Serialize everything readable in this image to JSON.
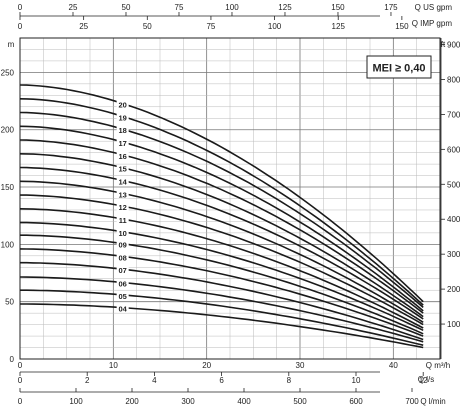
{
  "chart_data": {
    "type": "line",
    "title": "",
    "badge": "MEI ≥ 0,40",
    "flow_max_m3h": 45,
    "head_range_m": [
      0,
      280
    ],
    "axes": {
      "top_us": {
        "label": "Q US gpm",
        "ticks": [
          0,
          25,
          50,
          75,
          100,
          125,
          150,
          175
        ]
      },
      "top_imp": {
        "label": "Q IMP gpm",
        "ticks": [
          0,
          25,
          50,
          75,
          100,
          125,
          150
        ]
      },
      "left": {
        "label": "m",
        "ticks": [
          0,
          50,
          100,
          150,
          200,
          250
        ]
      },
      "right": {
        "label": "ft",
        "ticks": [
          100,
          200,
          300,
          400,
          500,
          600,
          700,
          800,
          900
        ]
      },
      "bottom_m3h": {
        "label": "Q m³/h",
        "ticks": [
          0,
          10,
          20,
          30,
          40
        ]
      },
      "bottom_ls": {
        "label": "Q l/s",
        "ticks": [
          0,
          2,
          4,
          6,
          8,
          10,
          12
        ]
      },
      "bottom_lmin": {
        "label": "Q l/min",
        "ticks": [
          0,
          100,
          200,
          300,
          400,
          500,
          600,
          700
        ]
      }
    },
    "curve_end_flow_m3h": 43.2,
    "series": [
      {
        "name": "04",
        "head_0": 48,
        "head_end": 10
      },
      {
        "name": "05",
        "head_0": 60,
        "head_end": 12
      },
      {
        "name": "06",
        "head_0": 71.5,
        "head_end": 15
      },
      {
        "name": "07",
        "head_0": 84,
        "head_end": 17
      },
      {
        "name": "08",
        "head_0": 96,
        "head_end": 20
      },
      {
        "name": "09",
        "head_0": 108,
        "head_end": 22
      },
      {
        "name": "10",
        "head_0": 119,
        "head_end": 25
      },
      {
        "name": "11",
        "head_0": 131,
        "head_end": 27
      },
      {
        "name": "12",
        "head_0": 143,
        "head_end": 30
      },
      {
        "name": "13",
        "head_0": 155,
        "head_end": 32
      },
      {
        "name": "14",
        "head_0": 167,
        "head_end": 35
      },
      {
        "name": "15",
        "head_0": 179,
        "head_end": 37
      },
      {
        "name": "16",
        "head_0": 191,
        "head_end": 40
      },
      {
        "name": "17",
        "head_0": 203,
        "head_end": 42
      },
      {
        "name": "18",
        "head_0": 215,
        "head_end": 45
      },
      {
        "name": "19",
        "head_0": 227,
        "head_end": 47
      },
      {
        "name": "20",
        "head_0": 239,
        "head_end": 50
      }
    ]
  }
}
